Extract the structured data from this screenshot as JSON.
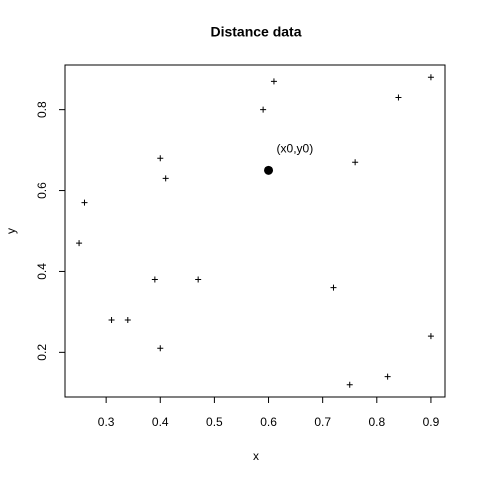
{
  "chart_data": {
    "type": "scatter",
    "title": "Distance data",
    "x_label": "x",
    "y_label": "y",
    "x": [
      0.61,
      0.59,
      0.9,
      0.84,
      0.4,
      0.76,
      0.41,
      0.26,
      0.25,
      0.39,
      0.47,
      0.72,
      0.31,
      0.34,
      0.4,
      0.9,
      0.82,
      0.75
    ],
    "y": [
      0.87,
      0.8,
      0.88,
      0.83,
      0.68,
      0.67,
      0.63,
      0.57,
      0.47,
      0.38,
      0.38,
      0.36,
      0.28,
      0.28,
      0.21,
      0.24,
      0.14,
      0.12
    ],
    "color": "#000000",
    "highlight": {
      "x": 0.6,
      "y": 0.65,
      "label": "(x0,y0)"
    },
    "xlim": [
      0.224,
      0.926
    ],
    "xticks": [
      0.3,
      0.4,
      0.5,
      0.6,
      0.7,
      0.8,
      0.9
    ],
    "ylim": [
      0.0896,
      0.9104
    ],
    "yticks": [
      0.2,
      0.4,
      0.6,
      0.8
    ],
    "grid": false
  }
}
